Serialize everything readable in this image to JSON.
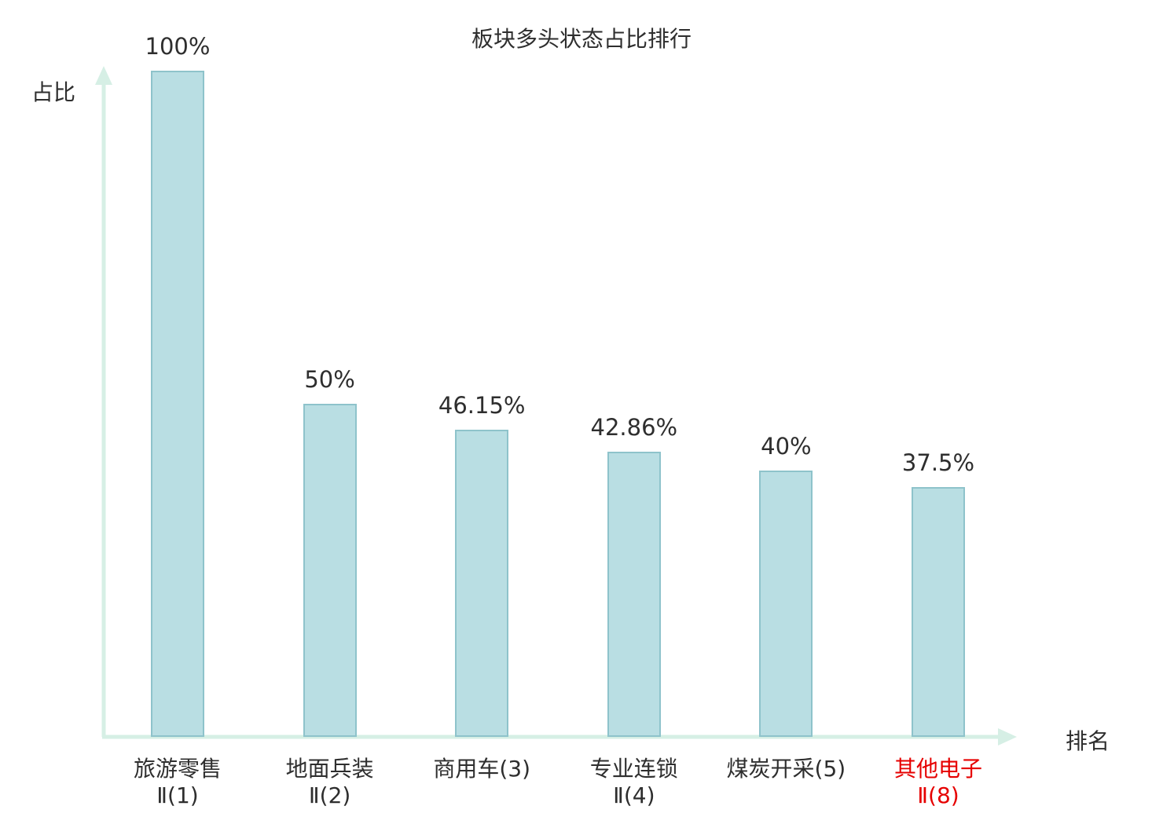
{
  "chart_data": {
    "type": "bar",
    "title": "板块多头状态占比排行",
    "xlabel": "排名",
    "ylabel": "占比",
    "categories": [
      "旅游零售Ⅱ(1)",
      "地面兵装Ⅱ(2)",
      "商用车(3)",
      "专业连锁Ⅱ(4)",
      "煤炭开采(5)",
      "其他电子Ⅱ(8)"
    ],
    "category_lines": [
      [
        "旅游零售",
        "Ⅱ(1)"
      ],
      [
        "地面兵装",
        "Ⅱ(2)"
      ],
      [
        "商用车(3)"
      ],
      [
        "专业连锁",
        "Ⅱ(4)"
      ],
      [
        "煤炭开采(5)"
      ],
      [
        "其他电子",
        "Ⅱ(8)"
      ]
    ],
    "values": [
      100,
      50,
      46.15,
      42.86,
      40,
      37.5
    ],
    "value_labels": [
      "100%",
      "50%",
      "46.15%",
      "42.86%",
      "40%",
      "37.5%"
    ],
    "ylim": [
      0,
      100
    ],
    "grid": false,
    "legend": "none",
    "highlight_index": 5,
    "highlight_color": "#e60000",
    "bar_fill": "#b9dee3",
    "bar_border": "#8ec3cb",
    "axis_color": "#d6efe5",
    "label_color": "#2e2e2e"
  }
}
